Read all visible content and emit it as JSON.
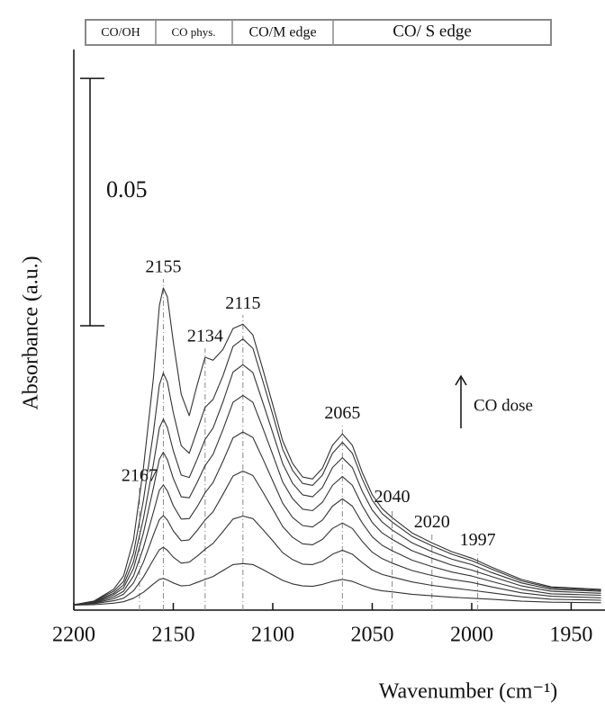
{
  "chart_data": {
    "type": "line",
    "xlabel": "Wavenumber (cm⁻¹)",
    "ylabel": "Absorbance (a.u.)",
    "region_labels": [
      "CO/OH",
      "CO phys.",
      "CO/M edge",
      "CO/ S edge"
    ],
    "scale_bar": 0.05,
    "annotation": "CO dose",
    "peaks": [
      2167,
      2155,
      2134,
      2115,
      2065,
      2040,
      2020,
      1997
    ],
    "color": "#333333",
    "xlim": [
      2200,
      1933
    ],
    "xticks": [
      2200,
      2150,
      2100,
      2050,
      2000,
      1950
    ],
    "ylim": [
      0,
      0.1133
    ],
    "x": [
      2200,
      2190,
      2180,
      2175,
      2170,
      2165,
      2160,
      2157,
      2155,
      2153,
      2150,
      2146,
      2142,
      2138,
      2134,
      2130,
      2125,
      2120,
      2115,
      2110,
      2105,
      2100,
      2095,
      2090,
      2085,
      2080,
      2075,
      2070,
      2065,
      2060,
      2055,
      2050,
      2045,
      2040,
      2030,
      2020,
      2010,
      2000,
      1990,
      1975,
      1960,
      1935
    ],
    "series": [
      {
        "values": [
          0.001,
          0.0011,
          0.0014,
          0.0017,
          0.0024,
          0.0036,
          0.0053,
          0.0062,
          0.0064,
          0.0061,
          0.0055,
          0.0049,
          0.005,
          0.0056,
          0.0062,
          0.0068,
          0.008,
          0.0092,
          0.0094,
          0.0092,
          0.0082,
          0.0071,
          0.006,
          0.0053,
          0.0049,
          0.0048,
          0.0052,
          0.0058,
          0.0062,
          0.0058,
          0.005,
          0.0043,
          0.0039,
          0.0037,
          0.0032,
          0.0029,
          0.0026,
          0.0024,
          0.0022,
          0.0018,
          0.0016,
          0.0015
        ]
      },
      {
        "values": [
          0.001,
          0.0013,
          0.0019,
          0.0024,
          0.0039,
          0.0067,
          0.0102,
          0.0122,
          0.0127,
          0.0121,
          0.0107,
          0.0095,
          0.0097,
          0.0109,
          0.0123,
          0.0135,
          0.0159,
          0.0184,
          0.019,
          0.0185,
          0.0163,
          0.014,
          0.0116,
          0.0102,
          0.0093,
          0.0092,
          0.0099,
          0.0113,
          0.0121,
          0.0113,
          0.0096,
          0.0081,
          0.0072,
          0.0067,
          0.0057,
          0.005,
          0.0045,
          0.004,
          0.0035,
          0.0027,
          0.0022,
          0.002
        ]
      },
      {
        "values": [
          0.001,
          0.0014,
          0.0023,
          0.0032,
          0.0055,
          0.0097,
          0.0152,
          0.0183,
          0.0191,
          0.0182,
          0.016,
          0.014,
          0.0142,
          0.0161,
          0.0182,
          0.0199,
          0.0234,
          0.0271,
          0.0281,
          0.0272,
          0.0239,
          0.0204,
          0.0169,
          0.0147,
          0.0134,
          0.0132,
          0.0143,
          0.0165,
          0.0176,
          0.0165,
          0.0139,
          0.0117,
          0.0104,
          0.0095,
          0.008,
          0.007,
          0.0062,
          0.0056,
          0.0047,
          0.0035,
          0.0028,
          0.0025
        ]
      },
      {
        "values": [
          0.0011,
          0.0015,
          0.0027,
          0.0038,
          0.0069,
          0.0126,
          0.0198,
          0.0242,
          0.0253,
          0.0241,
          0.0211,
          0.0184,
          0.0185,
          0.0209,
          0.0237,
          0.0258,
          0.0301,
          0.0348,
          0.036,
          0.0349,
          0.0306,
          0.0261,
          0.0216,
          0.0187,
          0.0171,
          0.0168,
          0.0182,
          0.021,
          0.0225,
          0.021,
          0.0176,
          0.0148,
          0.0131,
          0.012,
          0.0101,
          0.0088,
          0.0077,
          0.0069,
          0.0058,
          0.0042,
          0.0033,
          0.003
        ]
      },
      {
        "values": [
          0.0011,
          0.0016,
          0.0031,
          0.0045,
          0.0084,
          0.0156,
          0.0247,
          0.0305,
          0.0319,
          0.0304,
          0.0266,
          0.0229,
          0.0227,
          0.0258,
          0.0292,
          0.0315,
          0.0365,
          0.042,
          0.0434,
          0.042,
          0.0368,
          0.0314,
          0.0259,
          0.0225,
          0.0204,
          0.0201,
          0.0218,
          0.0252,
          0.027,
          0.0252,
          0.0211,
          0.0177,
          0.0156,
          0.0143,
          0.012,
          0.0105,
          0.0091,
          0.0081,
          0.0068,
          0.0049,
          0.0038,
          0.0034
        ]
      },
      {
        "values": [
          0.0011,
          0.0017,
          0.0034,
          0.0051,
          0.0098,
          0.0185,
          0.0295,
          0.0368,
          0.0386,
          0.0369,
          0.0322,
          0.0273,
          0.0268,
          0.0305,
          0.0345,
          0.0368,
          0.0421,
          0.0481,
          0.0496,
          0.048,
          0.042,
          0.0358,
          0.0296,
          0.0256,
          0.0233,
          0.0229,
          0.0248,
          0.0288,
          0.0308,
          0.0288,
          0.024,
          0.0202,
          0.0178,
          0.0162,
          0.0136,
          0.0118,
          0.0103,
          0.0092,
          0.0076,
          0.0055,
          0.0042,
          0.0038
        ]
      },
      {
        "values": [
          0.0011,
          0.0018,
          0.0038,
          0.0058,
          0.0115,
          0.0222,
          0.0359,
          0.0455,
          0.0479,
          0.0461,
          0.0399,
          0.0332,
          0.0317,
          0.0363,
          0.041,
          0.0426,
          0.0474,
          0.0533,
          0.0548,
          0.0529,
          0.0463,
          0.0395,
          0.0325,
          0.0282,
          0.0256,
          0.0252,
          0.0273,
          0.0317,
          0.0339,
          0.0317,
          0.0265,
          0.0222,
          0.0195,
          0.0178,
          0.0149,
          0.013,
          0.0113,
          0.01,
          0.0083,
          0.0059,
          0.0045,
          0.004
        ]
      },
      {
        "values": [
          0.0011,
          0.0018,
          0.0042,
          0.0069,
          0.0142,
          0.0287,
          0.0469,
          0.0615,
          0.0651,
          0.0633,
          0.0542,
          0.0436,
          0.0393,
          0.0455,
          0.0511,
          0.0505,
          0.0527,
          0.0569,
          0.0578,
          0.0556,
          0.0487,
          0.0415,
          0.0342,
          0.0296,
          0.0269,
          0.0265,
          0.0287,
          0.0333,
          0.0356,
          0.0333,
          0.0278,
          0.0233,
          0.0205,
          0.0187,
          0.0156,
          0.0136,
          0.0118,
          0.0105,
          0.0087,
          0.0062,
          0.0047,
          0.0042
        ]
      }
    ]
  }
}
